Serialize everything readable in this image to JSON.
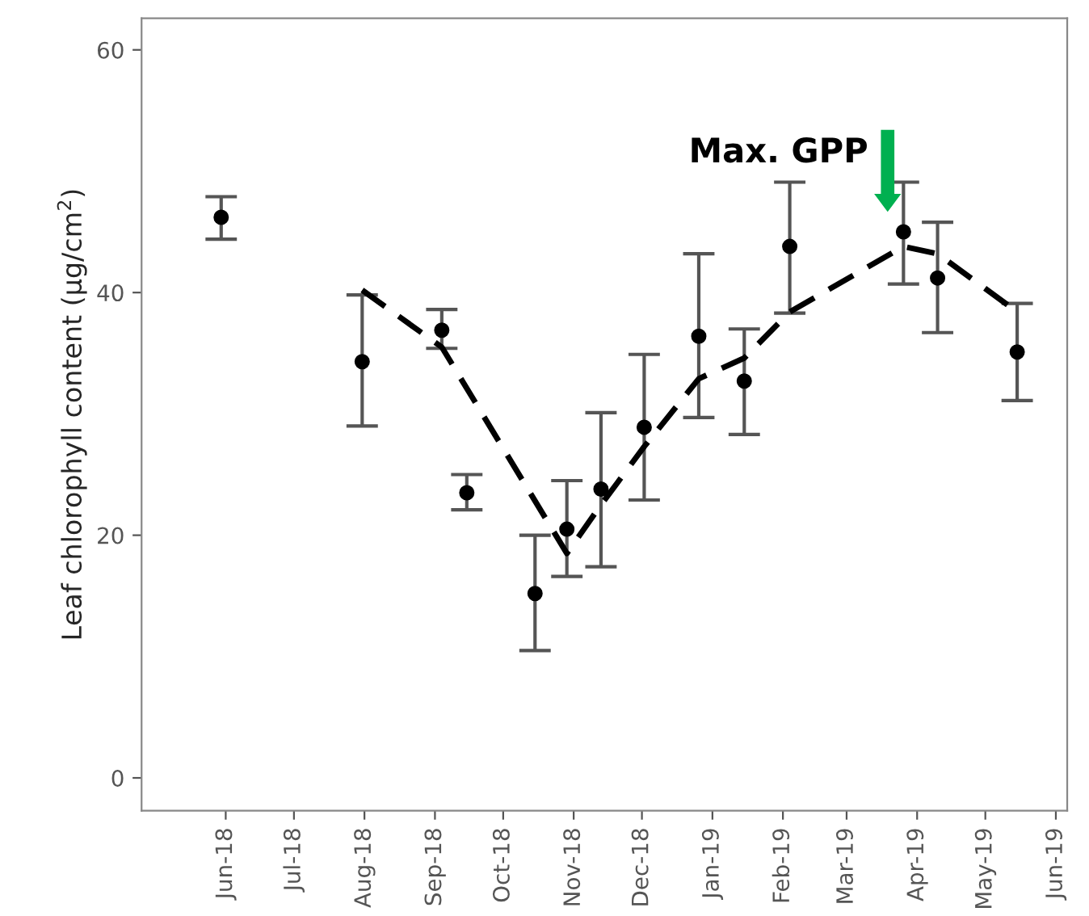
{
  "chart_data": {
    "type": "scatter",
    "ylabel": "Leaf chlorophyll content (µg/cm$^{2}$)",
    "xlim": [
      "2018-04-25",
      "2019-06-06"
    ],
    "ylim": [
      -2.7,
      62.6
    ],
    "yticks": [
      0,
      20,
      40,
      60
    ],
    "xticks": [
      {
        "value": "2018-06-01",
        "label": "Jun-18"
      },
      {
        "value": "2018-07-01",
        "label": "Jul-18"
      },
      {
        "value": "2018-08-01",
        "label": "Aug-18"
      },
      {
        "value": "2018-09-01",
        "label": "Sep-18"
      },
      {
        "value": "2018-10-01",
        "label": "Oct-18"
      },
      {
        "value": "2018-11-01",
        "label": "Nov-18"
      },
      {
        "value": "2018-12-01",
        "label": "Dec-18"
      },
      {
        "value": "2019-01-01",
        "label": "Jan-19"
      },
      {
        "value": "2019-02-01",
        "label": "Feb-19"
      },
      {
        "value": "2019-03-01",
        "label": "Mar-19"
      },
      {
        "value": "2019-04-01",
        "label": "Apr-19"
      },
      {
        "value": "2019-05-01",
        "label": "May-19"
      },
      {
        "value": "2019-06-01",
        "label": "Jun-19"
      }
    ],
    "grid": false,
    "legend": false,
    "series": [
      {
        "color": "#000000",
        "marker": "circle",
        "x": [
          "2018-05-30",
          "2018-07-31",
          "2018-09-04",
          "2018-09-15",
          "2018-10-15",
          "2018-10-29",
          "2018-11-13",
          "2018-12-02",
          "2018-12-26",
          "2019-01-15",
          "2019-02-04",
          "2019-03-26",
          "2019-04-10",
          "2019-05-15"
        ],
        "values": [
          46.2,
          34.3,
          36.9,
          23.5,
          15.2,
          20.5,
          23.8,
          28.9,
          36.4,
          32.7,
          43.8,
          45.0,
          41.2,
          35.1
        ],
        "errors": [
          [
            44.4,
            47.9
          ],
          [
            29.0,
            39.8
          ],
          [
            35.4,
            38.6
          ],
          [
            22.1,
            25.0
          ],
          [
            10.5,
            20.0
          ],
          [
            16.6,
            24.5
          ],
          [
            17.4,
            30.1
          ],
          [
            22.9,
            34.9
          ],
          [
            29.7,
            43.2
          ],
          [
            28.3,
            37.0
          ],
          [
            38.3,
            49.1
          ],
          [
            40.7,
            49.1
          ],
          [
            36.7,
            45.8
          ],
          [
            31.1,
            39.1
          ]
        ]
      },
      {
        "type": "line",
        "color": "#000000",
        "line_style": "dashed",
        "marker": "none",
        "x": [
          "2018-07-31",
          "2018-09-04",
          "2018-10-29",
          "2018-11-13",
          "2018-12-02",
          "2018-12-26",
          "2019-01-15",
          "2019-02-04",
          "2019-03-26",
          "2019-04-10",
          "2019-05-15"
        ],
        "values": [
          40.2,
          35.5,
          18.5,
          22.5,
          27.3,
          32.9,
          34.6,
          38.4,
          43.8,
          43.2,
          38.4
        ]
      }
    ],
    "annotations": [
      "Max. GPP"
    ]
  }
}
